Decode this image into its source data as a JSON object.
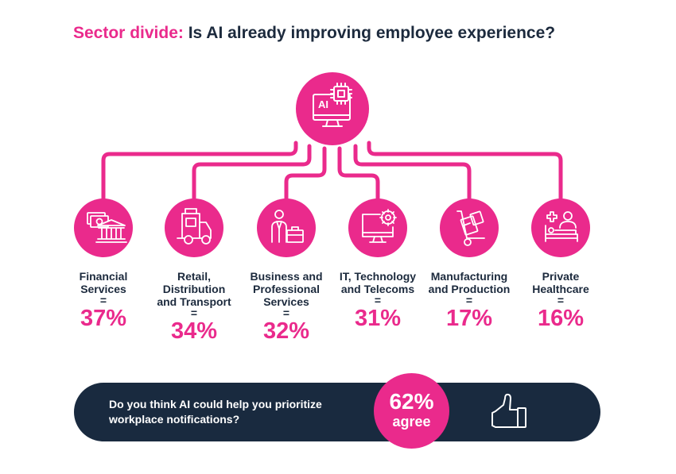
{
  "header": {
    "title_accent": "Sector divide:",
    "title_rest": " Is AI already improving employee experience?"
  },
  "hub": {
    "icon": "ai-monitor-chip-icon",
    "icon_text": "AI"
  },
  "sectors": [
    {
      "label": "Financial\nServices",
      "eq": "=",
      "value": "37%",
      "icon": "bank-money-icon"
    },
    {
      "label": "Retail,\nDistribution\nand Transport",
      "eq": "=",
      "value": "34%",
      "icon": "delivery-truck-icon"
    },
    {
      "label": "Business and\nProfessional\nServices",
      "eq": "=",
      "value": "32%",
      "icon": "businessperson-briefcase-icon"
    },
    {
      "label": "IT, Technology\nand Telecoms",
      "eq": "=",
      "value": "31%",
      "icon": "computer-gear-icon"
    },
    {
      "label": "Manufacturing\nand Production",
      "eq": "=",
      "value": "17%",
      "icon": "hand-truck-icon"
    },
    {
      "label": "Private\nHealthcare",
      "eq": "=",
      "value": "16%",
      "icon": "hospital-bed-icon"
    }
  ],
  "banner": {
    "question": "Do you think AI could help you prioritize workplace notifications?",
    "percent": "62%",
    "word": "agree",
    "icon": "thumbs-up-icon"
  },
  "colors": {
    "accent": "#ea2a8c",
    "navy": "#192a3f",
    "text": "#1c2a3d"
  }
}
